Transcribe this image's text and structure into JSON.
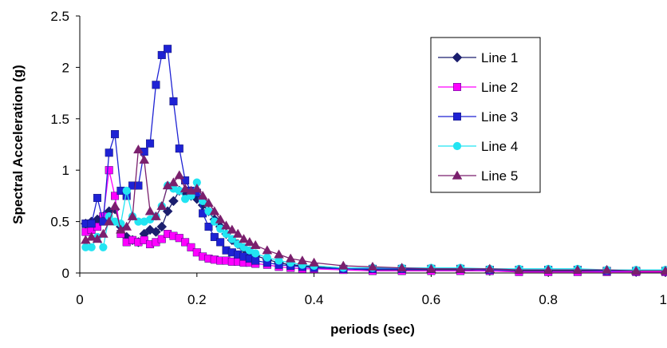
{
  "chart_data": {
    "type": "line",
    "title": "",
    "xlabel": "periods (sec)",
    "ylabel": "Spectral Acceleration (g)",
    "xlim": [
      0,
      1
    ],
    "ylim": [
      0,
      2.5
    ],
    "x_ticks": [
      "0",
      "0.2",
      "0.4",
      "0.6",
      "0.8",
      "1"
    ],
    "y_ticks": [
      "0",
      "0.5",
      "1",
      "1.5",
      "2",
      "2.5"
    ],
    "grid": false,
    "legend_position": "top-right",
    "series": [
      {
        "name": "Line 1",
        "color": "#1b1e6e",
        "marker": "diamond",
        "x": [
          0.01,
          0.02,
          0.03,
          0.04,
          0.05,
          0.06,
          0.07,
          0.08,
          0.09,
          0.1,
          0.11,
          0.12,
          0.13,
          0.14,
          0.15,
          0.16,
          0.17,
          0.18,
          0.19,
          0.2,
          0.21,
          0.22,
          0.23,
          0.24,
          0.25,
          0.26,
          0.27,
          0.28,
          0.29,
          0.3,
          0.32,
          0.34,
          0.36,
          0.38,
          0.4,
          0.45,
          0.5,
          0.55,
          0.6,
          0.65,
          0.7,
          0.75,
          0.8,
          0.85,
          0.9,
          0.95,
          1.0
        ],
        "y": [
          0.48,
          0.5,
          0.52,
          0.55,
          0.6,
          0.62,
          0.45,
          0.35,
          0.32,
          0.3,
          0.38,
          0.42,
          0.4,
          0.45,
          0.6,
          0.7,
          0.8,
          0.78,
          0.75,
          0.72,
          0.66,
          0.6,
          0.52,
          0.45,
          0.38,
          0.32,
          0.28,
          0.24,
          0.2,
          0.17,
          0.13,
          0.1,
          0.08,
          0.07,
          0.06,
          0.04,
          0.03,
          0.03,
          0.03,
          0.03,
          0.02,
          0.02,
          0.02,
          0.02,
          0.02,
          0.01,
          0.01
        ]
      },
      {
        "name": "Line 2",
        "color": "#ff00ff",
        "marker": "square",
        "x": [
          0.01,
          0.02,
          0.03,
          0.04,
          0.05,
          0.06,
          0.07,
          0.08,
          0.09,
          0.1,
          0.11,
          0.12,
          0.13,
          0.14,
          0.15,
          0.16,
          0.17,
          0.18,
          0.19,
          0.2,
          0.21,
          0.22,
          0.23,
          0.24,
          0.25,
          0.26,
          0.27,
          0.28,
          0.29,
          0.3,
          0.32,
          0.34,
          0.36,
          0.38,
          0.4,
          0.45,
          0.5,
          0.55,
          0.6,
          0.65,
          0.7,
          0.75,
          0.8,
          0.85,
          0.9,
          0.95,
          1.0
        ],
        "y": [
          0.4,
          0.42,
          0.45,
          0.55,
          1.0,
          0.75,
          0.38,
          0.3,
          0.32,
          0.3,
          0.32,
          0.28,
          0.3,
          0.33,
          0.38,
          0.36,
          0.34,
          0.3,
          0.25,
          0.2,
          0.16,
          0.14,
          0.13,
          0.12,
          0.12,
          0.11,
          0.11,
          0.1,
          0.1,
          0.09,
          0.08,
          0.06,
          0.05,
          0.04,
          0.04,
          0.03,
          0.02,
          0.02,
          0.02,
          0.02,
          0.02,
          0.01,
          0.01,
          0.01,
          0.01,
          0.01,
          0.01
        ]
      },
      {
        "name": "Line 3",
        "color": "#1e22d4",
        "marker": "square",
        "x": [
          0.01,
          0.02,
          0.03,
          0.04,
          0.05,
          0.06,
          0.07,
          0.08,
          0.09,
          0.1,
          0.11,
          0.12,
          0.13,
          0.14,
          0.15,
          0.16,
          0.17,
          0.18,
          0.19,
          0.2,
          0.21,
          0.22,
          0.23,
          0.24,
          0.25,
          0.26,
          0.27,
          0.28,
          0.29,
          0.3,
          0.32,
          0.34,
          0.36,
          0.38,
          0.4,
          0.45,
          0.5,
          0.55,
          0.6,
          0.65,
          0.7,
          0.75,
          0.8,
          0.85,
          0.9,
          0.95,
          1.0
        ],
        "y": [
          0.48,
          0.48,
          0.73,
          0.5,
          1.17,
          1.35,
          0.8,
          0.75,
          0.85,
          0.85,
          1.18,
          1.26,
          1.83,
          2.12,
          2.18,
          1.67,
          1.21,
          0.9,
          0.8,
          0.78,
          0.58,
          0.45,
          0.35,
          0.3,
          0.22,
          0.2,
          0.18,
          0.16,
          0.14,
          0.12,
          0.1,
          0.08,
          0.07,
          0.06,
          0.05,
          0.04,
          0.04,
          0.04,
          0.04,
          0.04,
          0.03,
          0.03,
          0.03,
          0.03,
          0.02,
          0.02,
          0.02
        ]
      },
      {
        "name": "Line 4",
        "color": "#22e4f2",
        "marker": "circle",
        "x": [
          0.01,
          0.02,
          0.03,
          0.04,
          0.05,
          0.06,
          0.07,
          0.08,
          0.09,
          0.1,
          0.11,
          0.12,
          0.13,
          0.14,
          0.15,
          0.16,
          0.17,
          0.18,
          0.19,
          0.2,
          0.21,
          0.22,
          0.23,
          0.24,
          0.25,
          0.26,
          0.27,
          0.28,
          0.29,
          0.3,
          0.32,
          0.34,
          0.36,
          0.38,
          0.4,
          0.45,
          0.5,
          0.55,
          0.6,
          0.65,
          0.7,
          0.75,
          0.8,
          0.85,
          0.9,
          0.95,
          1.0
        ],
        "y": [
          0.25,
          0.25,
          0.35,
          0.25,
          0.55,
          0.5,
          0.48,
          0.8,
          0.55,
          0.5,
          0.5,
          0.52,
          0.55,
          0.65,
          0.85,
          0.82,
          0.8,
          0.72,
          0.75,
          0.88,
          0.7,
          0.6,
          0.5,
          0.43,
          0.38,
          0.33,
          0.28,
          0.25,
          0.22,
          0.19,
          0.15,
          0.12,
          0.1,
          0.08,
          0.07,
          0.05,
          0.05,
          0.05,
          0.05,
          0.05,
          0.04,
          0.04,
          0.04,
          0.04,
          0.03,
          0.03,
          0.03
        ]
      },
      {
        "name": "Line 5",
        "color": "#7a1f6d",
        "marker": "triangle",
        "x": [
          0.01,
          0.02,
          0.03,
          0.04,
          0.05,
          0.06,
          0.07,
          0.08,
          0.09,
          0.1,
          0.11,
          0.12,
          0.13,
          0.14,
          0.15,
          0.16,
          0.17,
          0.18,
          0.19,
          0.2,
          0.21,
          0.22,
          0.23,
          0.24,
          0.25,
          0.26,
          0.27,
          0.28,
          0.29,
          0.3,
          0.32,
          0.34,
          0.36,
          0.38,
          0.4,
          0.45,
          0.5,
          0.55,
          0.6,
          0.65,
          0.7,
          0.75,
          0.8,
          0.85,
          0.9,
          0.95,
          1.0
        ],
        "y": [
          0.32,
          0.35,
          0.33,
          0.38,
          0.5,
          0.65,
          0.42,
          0.45,
          0.55,
          1.2,
          1.1,
          0.6,
          0.55,
          0.65,
          0.85,
          0.88,
          0.95,
          0.82,
          0.8,
          0.82,
          0.75,
          0.68,
          0.6,
          0.52,
          0.46,
          0.42,
          0.38,
          0.33,
          0.3,
          0.27,
          0.22,
          0.18,
          0.14,
          0.12,
          0.1,
          0.07,
          0.06,
          0.05,
          0.04,
          0.04,
          0.04,
          0.03,
          0.03,
          0.03,
          0.03,
          0.02,
          0.02
        ]
      }
    ]
  }
}
